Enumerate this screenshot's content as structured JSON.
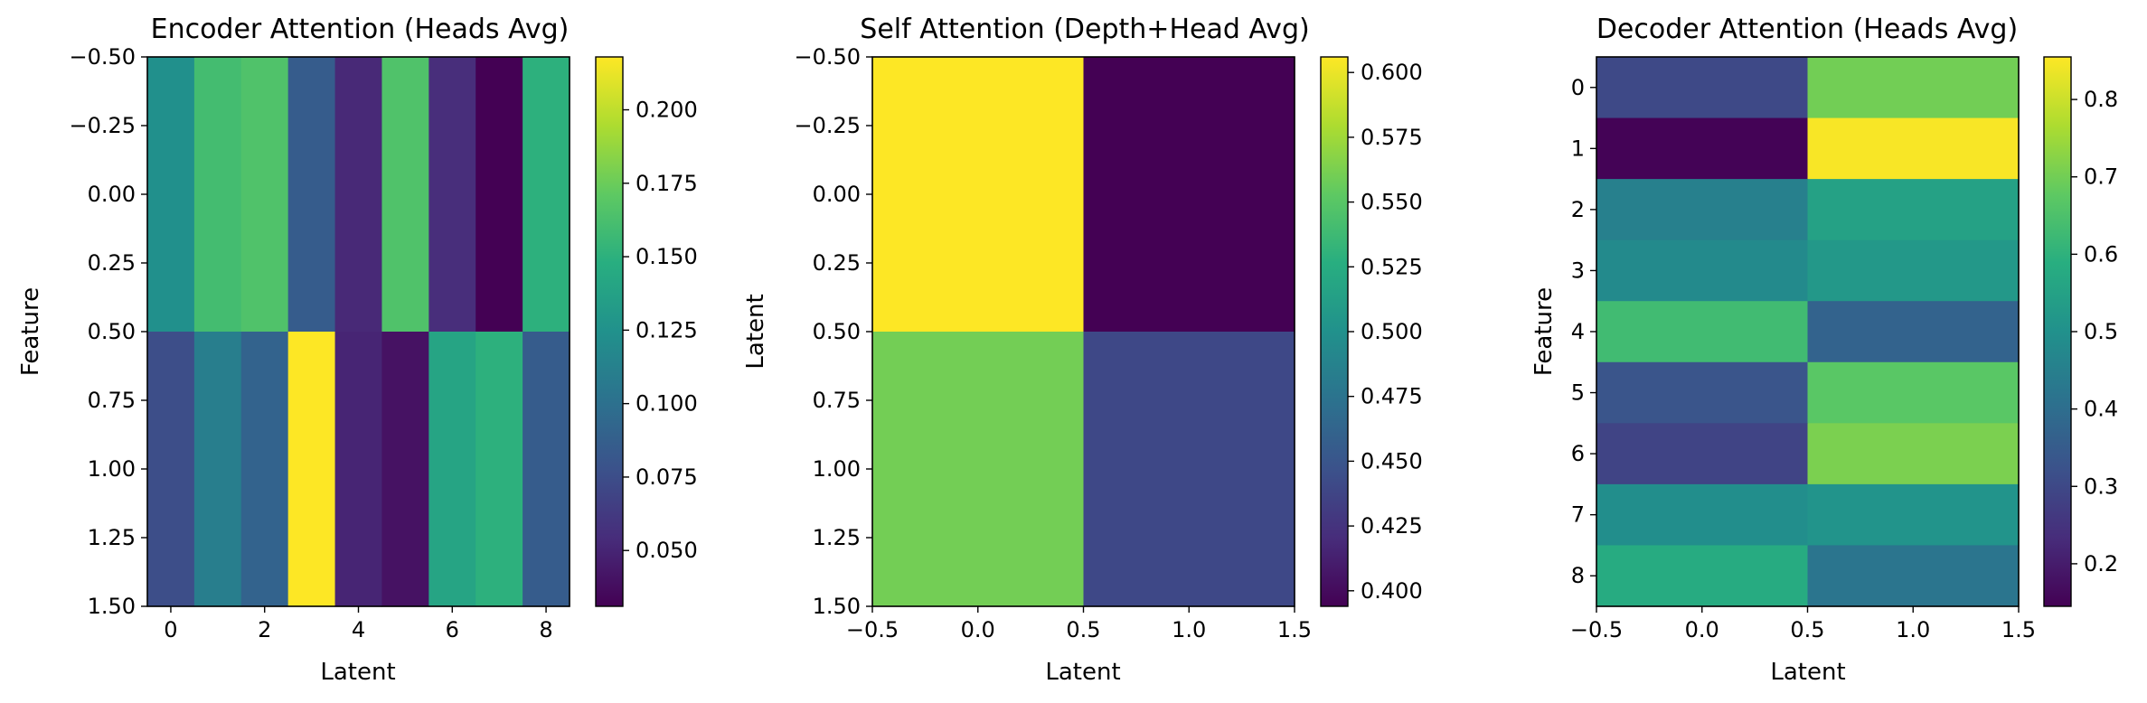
{
  "chart_data": [
    {
      "type": "heatmap",
      "title": "Encoder Attention (Heads Avg)",
      "xlabel": "Latent",
      "ylabel": "Feature",
      "xlim": [
        -0.5,
        8.5
      ],
      "ylim": [
        1.5,
        -0.5
      ],
      "xticks": [
        0,
        2,
        4,
        6,
        8
      ],
      "xtick_labels": [
        "0",
        "2",
        "4",
        "6",
        "8"
      ],
      "yticks": [
        -0.5,
        -0.25,
        0,
        0.25,
        0.5,
        0.75,
        1,
        1.25,
        1.5
      ],
      "ytick_labels": [
        "−0.50",
        "−0.25",
        "0.00",
        "0.25",
        "0.50",
        "0.75",
        "1.00",
        "1.25",
        "1.50"
      ],
      "values": [
        [
          0.124,
          0.16,
          0.165,
          0.085,
          0.052,
          0.165,
          0.055,
          0.03,
          0.15
        ],
        [
          0.075,
          0.11,
          0.09,
          0.218,
          0.05,
          0.04,
          0.14,
          0.15,
          0.085
        ]
      ],
      "colorbar": {
        "vmin": 0.031,
        "vmax": 0.218,
        "ticks": [
          0.05,
          0.075,
          0.1,
          0.125,
          0.15,
          0.175,
          0.2
        ],
        "tick_labels": [
          "0.050",
          "0.075",
          "0.100",
          "0.125",
          "0.150",
          "0.175",
          "0.200"
        ]
      },
      "colormap": "viridis"
    },
    {
      "type": "heatmap",
      "title": "Self Attention (Depth+Head Avg)",
      "xlabel": "Latent",
      "ylabel": "Latent",
      "xlim": [
        -0.5,
        1.5
      ],
      "ylim": [
        1.5,
        -0.5
      ],
      "xticks": [
        -0.5,
        0,
        0.5,
        1,
        1.5
      ],
      "xtick_labels": [
        "−0.5",
        "0.0",
        "0.5",
        "1.0",
        "1.5"
      ],
      "yticks": [
        -0.5,
        -0.25,
        0,
        0.25,
        0.5,
        0.75,
        1,
        1.25,
        1.5
      ],
      "ytick_labels": [
        "−0.50",
        "−0.25",
        "0.00",
        "0.25",
        "0.50",
        "0.75",
        "1.00",
        "1.25",
        "1.50"
      ],
      "values": [
        [
          0.606,
          0.394
        ],
        [
          0.56,
          0.44
        ]
      ],
      "colorbar": {
        "vmin": 0.394,
        "vmax": 0.606,
        "ticks": [
          0.4,
          0.425,
          0.45,
          0.475,
          0.5,
          0.525,
          0.55,
          0.575,
          0.6
        ],
        "tick_labels": [
          "0.400",
          "0.425",
          "0.450",
          "0.475",
          "0.500",
          "0.525",
          "0.550",
          "0.575",
          "0.600"
        ]
      },
      "colormap": "viridis"
    },
    {
      "type": "heatmap",
      "title": "Decoder Attention (Heads Avg)",
      "xlabel": "Latent",
      "ylabel": "Feature",
      "xlim": [
        -0.5,
        1.5
      ],
      "ylim": [
        8.5,
        -0.5
      ],
      "xticks": [
        -0.5,
        0,
        0.5,
        1,
        1.5
      ],
      "xtick_labels": [
        "−0.5",
        "0.0",
        "0.5",
        "1.0",
        "1.5"
      ],
      "yticks": [
        0,
        1,
        2,
        3,
        4,
        5,
        6,
        7,
        8
      ],
      "ytick_labels": [
        "0",
        "1",
        "2",
        "3",
        "4",
        "5",
        "6",
        "7",
        "8"
      ],
      "values": [
        [
          0.3,
          0.7
        ],
        [
          0.15,
          0.85
        ],
        [
          0.45,
          0.55
        ],
        [
          0.48,
          0.52
        ],
        [
          0.63,
          0.37
        ],
        [
          0.33,
          0.67
        ],
        [
          0.29,
          0.71
        ],
        [
          0.49,
          0.51
        ],
        [
          0.58,
          0.42
        ]
      ],
      "colorbar": {
        "vmin": 0.145,
        "vmax": 0.855,
        "ticks": [
          0.2,
          0.3,
          0.4,
          0.5,
          0.6,
          0.7,
          0.8
        ],
        "tick_labels": [
          "0.2",
          "0.3",
          "0.4",
          "0.5",
          "0.6",
          "0.7",
          "0.8"
        ]
      },
      "colormap": "viridis"
    }
  ]
}
